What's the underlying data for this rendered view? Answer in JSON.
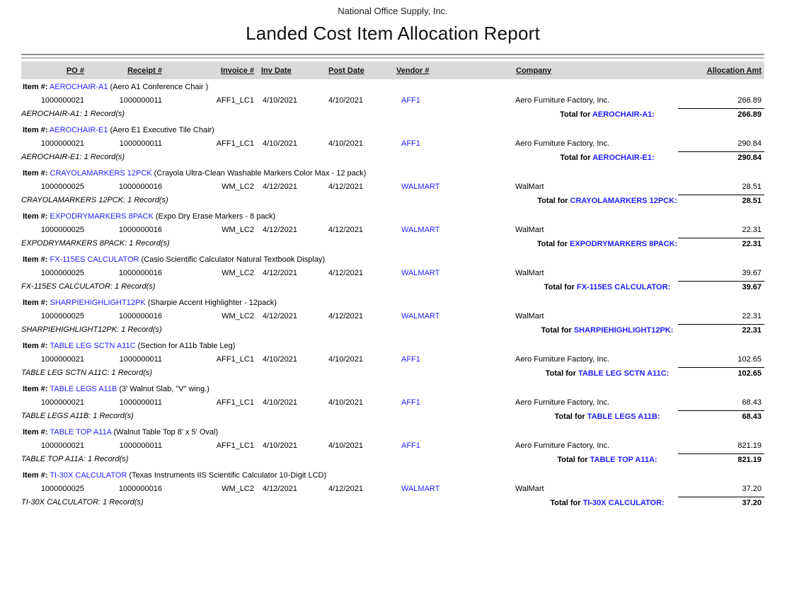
{
  "report": {
    "company": "National Office Supply, Inc.",
    "title": "Landed Cost Item Allocation Report"
  },
  "labels": {
    "item_prefix": "Item #:",
    "total_for": "Total for"
  },
  "columns": [
    "PO #",
    "Receipt #",
    "Invoice #",
    "Inv Date",
    "Post Date",
    "Vendor #",
    "Company",
    "Allocation Amt"
  ],
  "groups": [
    {
      "code": "AEROCHAIR-A1",
      "description": "(Aero A1 Conference Chair )",
      "row": {
        "po": "1000000021",
        "receipt": "1000000011",
        "invoice": "AFF1_LC1",
        "inv_date": "4/10/2021",
        "post_date": "4/10/2021",
        "vendor": "AFF1",
        "company": "Aero Furniture Factory, Inc.",
        "amount": "266.89"
      },
      "records": "AEROCHAIR-A1: 1 Record(s)",
      "total_code": "AEROCHAIR-A1:",
      "total_amount": "266.89"
    },
    {
      "code": "AEROCHAIR-E1",
      "description": "(Aero E1 Executive Tile Chair)",
      "row": {
        "po": "1000000021",
        "receipt": "1000000011",
        "invoice": "AFF1_LC1",
        "inv_date": "4/10/2021",
        "post_date": "4/10/2021",
        "vendor": "AFF1",
        "company": "Aero Furniture Factory, Inc.",
        "amount": "290.84"
      },
      "records": "AEROCHAIR-E1: 1 Record(s)",
      "total_code": "AEROCHAIR-E1:",
      "total_amount": "290.84"
    },
    {
      "code": "CRAYOLAMARKERS 12PCK",
      "description": "(Crayola Ultra-Clean Washable Markers Color Max - 12 pack)",
      "row": {
        "po": "1000000025",
        "receipt": "1000000016",
        "invoice": "WM_LC2",
        "inv_date": "4/12/2021",
        "post_date": "4/12/2021",
        "vendor": "WALMART",
        "company": "WalMart",
        "amount": "28.51"
      },
      "records": "CRAYOLAMARKERS 12PCK: 1 Record(s)",
      "total_code": "CRAYOLAMARKERS 12PCK:",
      "total_amount": "28.51"
    },
    {
      "code": "EXPODRYMARKERS 8PACK",
      "description": "(Expo Dry Erase Markers - 8 pack)",
      "row": {
        "po": "1000000025",
        "receipt": "1000000016",
        "invoice": "WM_LC2",
        "inv_date": "4/12/2021",
        "post_date": "4/12/2021",
        "vendor": "WALMART",
        "company": "WalMart",
        "amount": "22.31"
      },
      "records": "EXPODRYMARKERS 8PACK: 1 Record(s)",
      "total_code": "EXPODRYMARKERS 8PACK:",
      "total_amount": "22.31"
    },
    {
      "code": "FX-115ES CALCULATOR",
      "description": "(Casio Scientific Calculator Natural Textbook Display)",
      "row": {
        "po": "1000000025",
        "receipt": "1000000016",
        "invoice": "WM_LC2",
        "inv_date": "4/12/2021",
        "post_date": "4/12/2021",
        "vendor": "WALMART",
        "company": "WalMart",
        "amount": "39.67"
      },
      "records": "FX-115ES CALCULATOR: 1 Record(s)",
      "total_code": "FX-115ES CALCULATOR:",
      "total_amount": "39.67"
    },
    {
      "code": "SHARPIEHIGHLIGHT12PK",
      "description": "(Sharpie Accent Highlighter - 12pack)",
      "row": {
        "po": "1000000025",
        "receipt": "1000000016",
        "invoice": "WM_LC2",
        "inv_date": "4/12/2021",
        "post_date": "4/12/2021",
        "vendor": "WALMART",
        "company": "WalMart",
        "amount": "22.31"
      },
      "records": "SHARPIEHIGHLIGHT12PK: 1 Record(s)",
      "total_code": "SHARPIEHIGHLIGHT12PK:",
      "total_amount": "22.31"
    },
    {
      "code": "TABLE LEG SCTN A11C",
      "description": "(Section for A11b Table Leg)",
      "row": {
        "po": "1000000021",
        "receipt": "1000000011",
        "invoice": "AFF1_LC1",
        "inv_date": "4/10/2021",
        "post_date": "4/10/2021",
        "vendor": "AFF1",
        "company": "Aero Furniture Factory, Inc.",
        "amount": "102.65"
      },
      "records": "TABLE LEG SCTN A11C: 1 Record(s)",
      "total_code": "TABLE LEG SCTN A11C:",
      "total_amount": "102.65"
    },
    {
      "code": "TABLE LEGS A11B",
      "description": "(3' Walnut Slab, \"V\" wing.)",
      "row": {
        "po": "1000000021",
        "receipt": "1000000011",
        "invoice": "AFF1_LC1",
        "inv_date": "4/10/2021",
        "post_date": "4/10/2021",
        "vendor": "AFF1",
        "company": "Aero Furniture Factory, Inc.",
        "amount": "68.43"
      },
      "records": "TABLE LEGS A11B: 1 Record(s)",
      "total_code": "TABLE LEGS A11B:",
      "total_amount": "68.43"
    },
    {
      "code": "TABLE TOP A11A",
      "description": "(Walnut Table Top 8' x 5' Oval)",
      "row": {
        "po": "1000000021",
        "receipt": "1000000011",
        "invoice": "AFF1_LC1",
        "inv_date": "4/10/2021",
        "post_date": "4/10/2021",
        "vendor": "AFF1",
        "company": "Aero Furniture Factory, Inc.",
        "amount": "821.19"
      },
      "records": "TABLE TOP A11A: 1 Record(s)",
      "total_code": "TABLE TOP A11A:",
      "total_amount": "821.19"
    },
    {
      "code": "TI-30X CALCULATOR",
      "description": "(Texas Instruments IIS Scientific Calculator 10-Digit LCD)",
      "row": {
        "po": "1000000025",
        "receipt": "1000000016",
        "invoice": "WM_LC2",
        "inv_date": "4/12/2021",
        "post_date": "4/12/2021",
        "vendor": "WALMART",
        "company": "WalMart",
        "amount": "37.20"
      },
      "records": "TI-30X CALCULATOR: 1 Record(s)",
      "total_code": "TI-30X CALCULATOR:",
      "total_amount": "37.20"
    }
  ]
}
